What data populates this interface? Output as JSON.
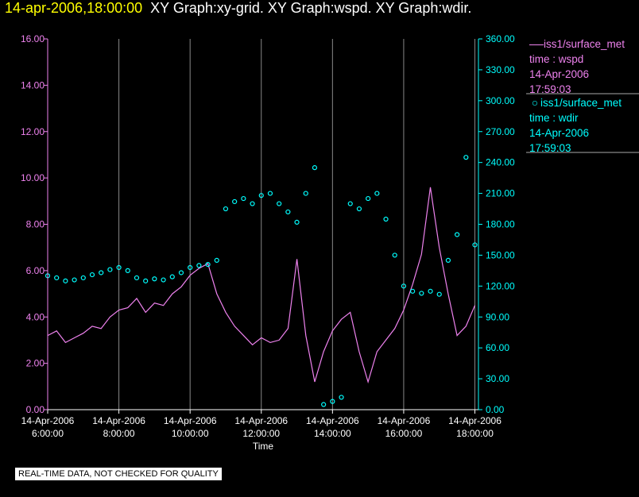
{
  "header": {
    "timestamp": "14-apr-2006,18:00:00",
    "graphs": "XY Graph:xy-grid.  XY Graph:wspd.  XY Graph:wdir."
  },
  "colors": {
    "wspd": "#ee82ee",
    "wdir": "#00ffff",
    "timestamp": "#ffff00",
    "grid": "#888888"
  },
  "legend": [
    {
      "name": "iss1/surface_met",
      "var": "time : wspd",
      "date": "14-Apr-2006",
      "time": "17:59:03",
      "marker": "line"
    },
    {
      "name": "iss1/surface_met",
      "var": "time : wdir",
      "date": "14-Apr-2006",
      "time": "17:59:03",
      "marker": "circle"
    }
  ],
  "disclaimer": "REAL-TIME DATA, NOT CHECKED FOR QUALITY",
  "chart_data": {
    "type": "line",
    "xlabel": "Time",
    "xlim": [
      6.0,
      18.1
    ],
    "x_ticks": [
      {
        "value": 6,
        "date": "14-Apr-2006",
        "time": "6:00:00"
      },
      {
        "value": 8,
        "date": "14-Apr-2006",
        "time": "8:00:00"
      },
      {
        "value": 10,
        "date": "14-Apr-2006",
        "time": "10:00:00"
      },
      {
        "value": 12,
        "date": "14-Apr-2006",
        "time": "12:00:00"
      },
      {
        "value": 14,
        "date": "14-Apr-2006",
        "time": "14:00:00"
      },
      {
        "value": 16,
        "date": "14-Apr-2006",
        "time": "16:00:00"
      },
      {
        "value": 18,
        "date": "14-Apr-2006",
        "time": "18:00:00"
      }
    ],
    "grid_x": true,
    "y_left": {
      "lim": [
        0,
        16
      ],
      "ticks": [
        "0.00",
        "2.00",
        "4.00",
        "6.00",
        "8.00",
        "10.00",
        "12.00",
        "14.00",
        "16.00"
      ]
    },
    "y_right": {
      "lim": [
        0,
        360
      ],
      "ticks": [
        "0.00",
        "30.00",
        "60.00",
        "90.00",
        "120.00",
        "150.00",
        "180.00",
        "210.00",
        "240.00",
        "270.00",
        "300.00",
        "330.00",
        "360.00"
      ]
    },
    "legend_position": "right",
    "series": [
      {
        "key": "wspd",
        "axis": "left",
        "style": "line",
        "x": [
          6.0,
          6.25,
          6.5,
          6.75,
          7.0,
          7.25,
          7.5,
          7.75,
          8.0,
          8.25,
          8.5,
          8.75,
          9.0,
          9.25,
          9.5,
          9.75,
          10.0,
          10.25,
          10.5,
          10.75,
          11.0,
          11.25,
          11.5,
          11.75,
          12.0,
          12.25,
          12.5,
          12.75,
          13.0,
          13.25,
          13.5,
          13.75,
          14.0,
          14.25,
          14.5,
          14.75,
          15.0,
          15.25,
          15.5,
          15.75,
          16.0,
          16.25,
          16.5,
          16.75,
          17.0,
          17.25,
          17.5,
          17.75,
          18.0
        ],
        "y": [
          3.2,
          3.4,
          2.9,
          3.1,
          3.3,
          3.6,
          3.5,
          4.0,
          4.3,
          4.4,
          4.8,
          4.2,
          4.6,
          4.5,
          5.0,
          5.3,
          5.8,
          6.1,
          6.3,
          5.0,
          4.2,
          3.6,
          3.2,
          2.8,
          3.1,
          2.9,
          3.0,
          3.5,
          6.5,
          3.2,
          1.2,
          2.5,
          3.4,
          3.9,
          4.2,
          2.5,
          1.2,
          2.5,
          3.0,
          3.5,
          4.3,
          5.4,
          6.7,
          9.6,
          7.0,
          5.0,
          3.2,
          3.6,
          4.5
        ]
      },
      {
        "key": "wdir",
        "axis": "right",
        "style": "markers",
        "x": [
          6.0,
          6.25,
          6.5,
          6.75,
          7.0,
          7.25,
          7.5,
          7.75,
          8.0,
          8.25,
          8.5,
          8.75,
          9.0,
          9.25,
          9.5,
          9.75,
          10.0,
          10.25,
          10.5,
          10.75,
          11.0,
          11.25,
          11.5,
          11.75,
          12.0,
          12.25,
          12.5,
          12.75,
          13.0,
          13.25,
          13.5,
          13.75,
          14.0,
          14.25,
          14.5,
          14.75,
          15.0,
          15.25,
          15.5,
          15.75,
          16.0,
          16.25,
          16.5,
          16.75,
          17.0,
          17.25,
          17.5,
          17.75,
          18.0
        ],
        "y": [
          130,
          128,
          125,
          126,
          128,
          131,
          133,
          136,
          138,
          135,
          128,
          125,
          127,
          126,
          129,
          133,
          138,
          140,
          141,
          145,
          195,
          202,
          205,
          200,
          208,
          210,
          200,
          192,
          182,
          210,
          235,
          5,
          8,
          12,
          200,
          195,
          205,
          210,
          185,
          150,
          120,
          115,
          113,
          115,
          112,
          145,
          170,
          245,
          160
        ]
      }
    ]
  }
}
